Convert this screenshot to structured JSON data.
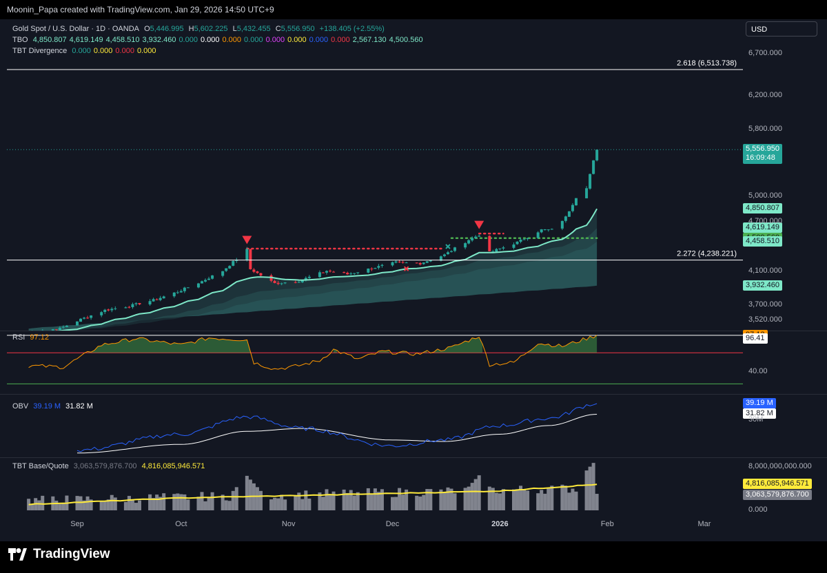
{
  "header": {
    "credit": "Moonin_Papa created with TradingView.com, Jan 29, 2026 14:50 UTC+9"
  },
  "currency": "USD",
  "legend": {
    "symbol": "Gold Spot / U.S. Dollar · 1D · OANDA",
    "o_label": "O",
    "o": "5,446.995",
    "h_label": "H",
    "h": "5,602.225",
    "l_label": "L",
    "l": "5,432.455",
    "c_label": "C",
    "c": "5,556.950",
    "change": "+138.405 (+2.55%)",
    "tbo_name": "TBO",
    "tbo_values": [
      {
        "v": "4,850.807",
        "color": "#7ee8c8"
      },
      {
        "v": "4,619.149",
        "color": "#7ee8c8"
      },
      {
        "v": "4,458.510",
        "color": "#7ee8c8"
      },
      {
        "v": "3,932.460",
        "color": "#7ee8c8"
      },
      {
        "v": "0.000",
        "color": "#26a69a"
      },
      {
        "v": "0.000",
        "color": "#ffffff"
      },
      {
        "v": "0.000",
        "color": "#ff9800"
      },
      {
        "v": "0.000",
        "color": "#26a69a"
      },
      {
        "v": "0.000",
        "color": "#e040fb"
      },
      {
        "v": "0.000",
        "color": "#ffeb3b"
      },
      {
        "v": "0.000",
        "color": "#2962ff"
      },
      {
        "v": "0.000",
        "color": "#f23645"
      },
      {
        "v": "2,567.130",
        "color": "#7ee8c8"
      },
      {
        "v": "4,500.560",
        "color": "#7ee8c8"
      }
    ],
    "div_name": "TBT Divergence",
    "div_values": [
      {
        "v": "0.000",
        "color": "#26a69a"
      },
      {
        "v": "0.000",
        "color": "#ffeb3b"
      },
      {
        "v": "0.000",
        "color": "#f23645"
      },
      {
        "v": "0.000",
        "color": "#ffeb3b"
      }
    ]
  },
  "colors": {
    "up": "#26a69a",
    "down": "#f23645",
    "bg": "#131722",
    "tbo_line": "#7ee8c8",
    "rsi": "#ff9800",
    "obv": "#2962ff",
    "volume_ma": "#ffeb3b"
  },
  "chart_data": [
    {
      "type": "candlestick",
      "title": "Gold Spot / U.S. Dollar · 1D · OANDA",
      "ylim": [
        3450,
        6850
      ],
      "yticks": [
        "6,700.000",
        "6,200.000",
        "5,800.000",
        "5,000.000",
        "4,700.000",
        "4,100.000",
        "3,700.000",
        "3,520.000"
      ],
      "ytick_values": [
        6700,
        6200,
        5800,
        5000,
        4700,
        4100,
        3700,
        3520
      ],
      "x_labels": [
        "Sep",
        "Oct",
        "Nov",
        "Dec",
        "2026",
        "Feb",
        "Mar"
      ],
      "x_label_dates": [
        "2025-09-01",
        "2025-10-01",
        "2025-11-01",
        "2025-12-01",
        "2026-01-01",
        "2026-02-01",
        "2026-03-01"
      ],
      "close_anchors": [
        {
          "date": "2025-08-27",
          "close": 3420
        },
        {
          "date": "2025-09-02",
          "close": 3530
        },
        {
          "date": "2025-09-09",
          "close": 3640
        },
        {
          "date": "2025-09-16",
          "close": 3690
        },
        {
          "date": "2025-09-23",
          "close": 3760
        },
        {
          "date": "2025-09-30",
          "close": 3860
        },
        {
          "date": "2025-10-07",
          "close": 3985
        },
        {
          "date": "2025-10-13",
          "close": 4110
        },
        {
          "date": "2025-10-17",
          "close": 4250
        },
        {
          "date": "2025-10-20",
          "close": 4360
        },
        {
          "date": "2025-10-21",
          "close": 4130
        },
        {
          "date": "2025-10-28",
          "close": 3960
        },
        {
          "date": "2025-11-04",
          "close": 3990
        },
        {
          "date": "2025-11-12",
          "close": 4110
        },
        {
          "date": "2025-11-18",
          "close": 4070
        },
        {
          "date": "2025-11-25",
          "close": 4140
        },
        {
          "date": "2025-12-02",
          "close": 4210
        },
        {
          "date": "2025-12-09",
          "close": 4200
        },
        {
          "date": "2025-12-16",
          "close": 4300
        },
        {
          "date": "2025-12-23",
          "close": 4480
        },
        {
          "date": "2025-12-26",
          "close": 4540
        },
        {
          "date": "2025-12-29",
          "close": 4330
        },
        {
          "date": "2026-01-06",
          "close": 4450
        },
        {
          "date": "2026-01-13",
          "close": 4600
        },
        {
          "date": "2026-01-16",
          "close": 4600
        },
        {
          "date": "2026-01-20",
          "close": 4750
        },
        {
          "date": "2026-01-23",
          "close": 4990
        },
        {
          "date": "2026-01-26",
          "close": 5110
        },
        {
          "date": "2026-01-28",
          "close": 5420
        },
        {
          "date": "2026-01-29",
          "close": 5556.95
        }
      ],
      "lines": [
        {
          "name": "TBO",
          "value": 4850.807
        },
        {
          "name": "",
          "value": 4619.149
        },
        {
          "name": "",
          "value": 4458.51
        },
        {
          "name": "",
          "value": 3932.46
        }
      ],
      "horizontal_levels": [
        {
          "label": "2.618 (6,513.738)",
          "value": 6513.738
        },
        {
          "label": "2.272 (4,238.221)",
          "value": 4238.221
        }
      ],
      "dotted_levels": [
        {
          "value": 4375,
          "from": "2025-10-20",
          "to": "2025-12-16",
          "color": "#f23645"
        },
        {
          "value": 4555,
          "from": "2025-12-26",
          "to": "2026-01-02",
          "color": "#f23645"
        },
        {
          "value": 4500.56,
          "from": "2025-12-18",
          "to": "2026-01-29",
          "color": "#4caf50"
        }
      ],
      "markers": [
        {
          "date": "2025-10-20",
          "value": 4470,
          "shape": "triangle-down",
          "color": "#f23645"
        },
        {
          "date": "2025-12-26",
          "value": 4650,
          "shape": "triangle-down",
          "color": "#f23645"
        },
        {
          "date": "2025-12-17",
          "value": 4400,
          "shape": "cross",
          "color": "#26a69a"
        },
        {
          "date": "2025-12-05",
          "value": 4135,
          "shape": "cross",
          "color": "#f23645"
        }
      ],
      "last_price": {
        "value": "5,556.950",
        "countdown": "16:09:48"
      },
      "price_tags": [
        {
          "value": "4,850.807",
          "num": 4850.807,
          "color": "#7ee8c8"
        },
        {
          "value": "4,619.149",
          "num": 4619.149,
          "color": "#7ee8c8"
        },
        {
          "value": "4,500.560",
          "num": 4500.56,
          "color": "#4caf50"
        },
        {
          "value": "4,458.510",
          "num": 4458.51,
          "color": "#7ee8c8"
        },
        {
          "value": "3,932.460",
          "num": 3932.46,
          "color": "#7ee8c8"
        }
      ]
    },
    {
      "type": "line",
      "name": "RSI",
      "value_label": "97.12",
      "ytick": "40.00",
      "ylim": [
        15,
        100
      ],
      "levels": [
        97,
        70,
        30
      ],
      "tags": [
        "97.12",
        "96.41"
      ],
      "x": [
        "2025-08-18",
        "2025-08-28",
        "2025-09-08",
        "2025-09-18",
        "2025-10-01",
        "2025-10-09",
        "2025-10-20",
        "2025-10-22",
        "2025-10-28",
        "2025-11-03",
        "2025-11-10",
        "2025-11-14",
        "2025-11-21",
        "2025-11-28",
        "2025-12-08",
        "2025-12-18",
        "2025-12-26",
        "2025-12-29",
        "2026-01-05",
        "2026-01-12",
        "2026-01-19",
        "2026-01-29"
      ],
      "values": [
        50,
        48,
        82,
        92,
        82,
        93,
        90,
        55,
        45,
        49,
        58,
        75,
        60,
        72,
        68,
        78,
        96,
        52,
        55,
        85,
        80,
        97.12
      ]
    },
    {
      "type": "line",
      "name": "OBV",
      "series": [
        {
          "name": "OBV",
          "last": "39.19 M"
        },
        {
          "name": "",
          "last": "31.82 M"
        }
      ],
      "ytick": "30M",
      "x": [
        "2025-09-01",
        "2025-10-01",
        "2025-10-20",
        "2025-11-05",
        "2025-12-01",
        "2025-12-16",
        "2026-01-01",
        "2026-01-15",
        "2026-01-29"
      ],
      "obv": [
        7,
        18,
        30,
        22,
        10,
        14,
        24,
        29,
        39.19
      ],
      "ma": [
        5,
        11,
        20,
        22,
        14,
        13,
        18,
        24,
        31.82
      ],
      "ylim": [
        3,
        43
      ]
    },
    {
      "type": "bar",
      "name": "TBT Base/Quote",
      "value_labels": [
        "3,063,579,876.700",
        "4,816,085,946.571"
      ],
      "yticks": [
        "8,000,000,000.000",
        "0.000"
      ],
      "ylim": [
        0,
        9200000000
      ],
      "last_base": 3063579876.7,
      "ma": [
        {
          "date": "2025-08-18",
          "v": 1100000000
        },
        {
          "date": "2025-10-01",
          "v": 2300000000
        },
        {
          "date": "2025-11-15",
          "v": 2900000000
        },
        {
          "date": "2026-01-01",
          "v": 3600000000
        },
        {
          "date": "2026-01-29",
          "v": 4816085946.571
        }
      ],
      "spikes": [
        {
          "date": "2025-10-20",
          "v": 6400000000
        },
        {
          "date": "2025-12-26",
          "v": 6500000000
        },
        {
          "date": "2026-01-28",
          "v": 8800000000
        }
      ]
    }
  ]
}
